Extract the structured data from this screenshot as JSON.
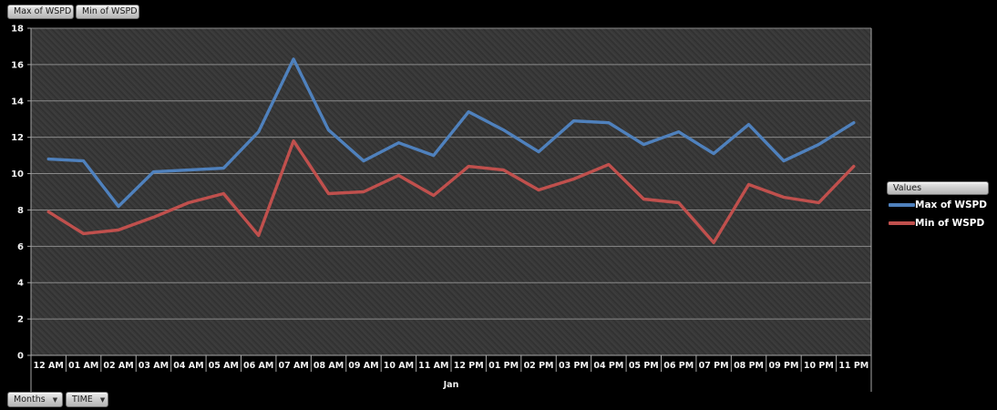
{
  "field_buttons": [
    {
      "label": "Max of WSPD"
    },
    {
      "label": "Min of WSPD"
    }
  ],
  "axis_field_buttons": [
    {
      "label": "Months"
    },
    {
      "label": "TIME"
    }
  ],
  "legend": {
    "button_label": "Values",
    "entries": [
      {
        "label": "Max of WSPD",
        "color": "#4F81BD"
      },
      {
        "label": "Min of WSPD",
        "color": "#C0504D"
      }
    ]
  },
  "chart_data": {
    "type": "line",
    "categories": [
      "12 AM",
      "01 AM",
      "02 AM",
      "03 AM",
      "04 AM",
      "05 AM",
      "06 AM",
      "07 AM",
      "08 AM",
      "09 AM",
      "10 AM",
      "11 AM",
      "12 PM",
      "01 PM",
      "02 PM",
      "03 PM",
      "04 PM",
      "05 PM",
      "06 PM",
      "07 PM",
      "08 PM",
      "09 PM",
      "10 PM",
      "11 PM"
    ],
    "group_label": "Jan",
    "series": [
      {
        "name": "Max of WSPD",
        "color": "#4F81BD",
        "values": [
          10.8,
          10.7,
          8.2,
          10.1,
          10.2,
          10.3,
          12.3,
          16.3,
          12.4,
          10.7,
          11.7,
          11.0,
          13.4,
          12.4,
          11.2,
          12.9,
          12.8,
          11.6,
          12.3,
          11.1,
          12.7,
          10.7,
          11.6,
          12.8
        ]
      },
      {
        "name": "Min of WSPD",
        "color": "#C0504D",
        "values": [
          7.9,
          6.7,
          6.9,
          7.6,
          8.4,
          8.9,
          6.6,
          11.8,
          8.9,
          9.0,
          9.9,
          8.8,
          10.4,
          10.2,
          9.1,
          9.7,
          10.5,
          8.6,
          8.4,
          6.2,
          9.4,
          8.7,
          8.4,
          10.4
        ]
      }
    ],
    "ylim": [
      0,
      18
    ],
    "ytick_step": 2,
    "grid": true,
    "legend_position": "right",
    "plot_background": "#383838",
    "gridline_color": "#8a8a8a"
  }
}
